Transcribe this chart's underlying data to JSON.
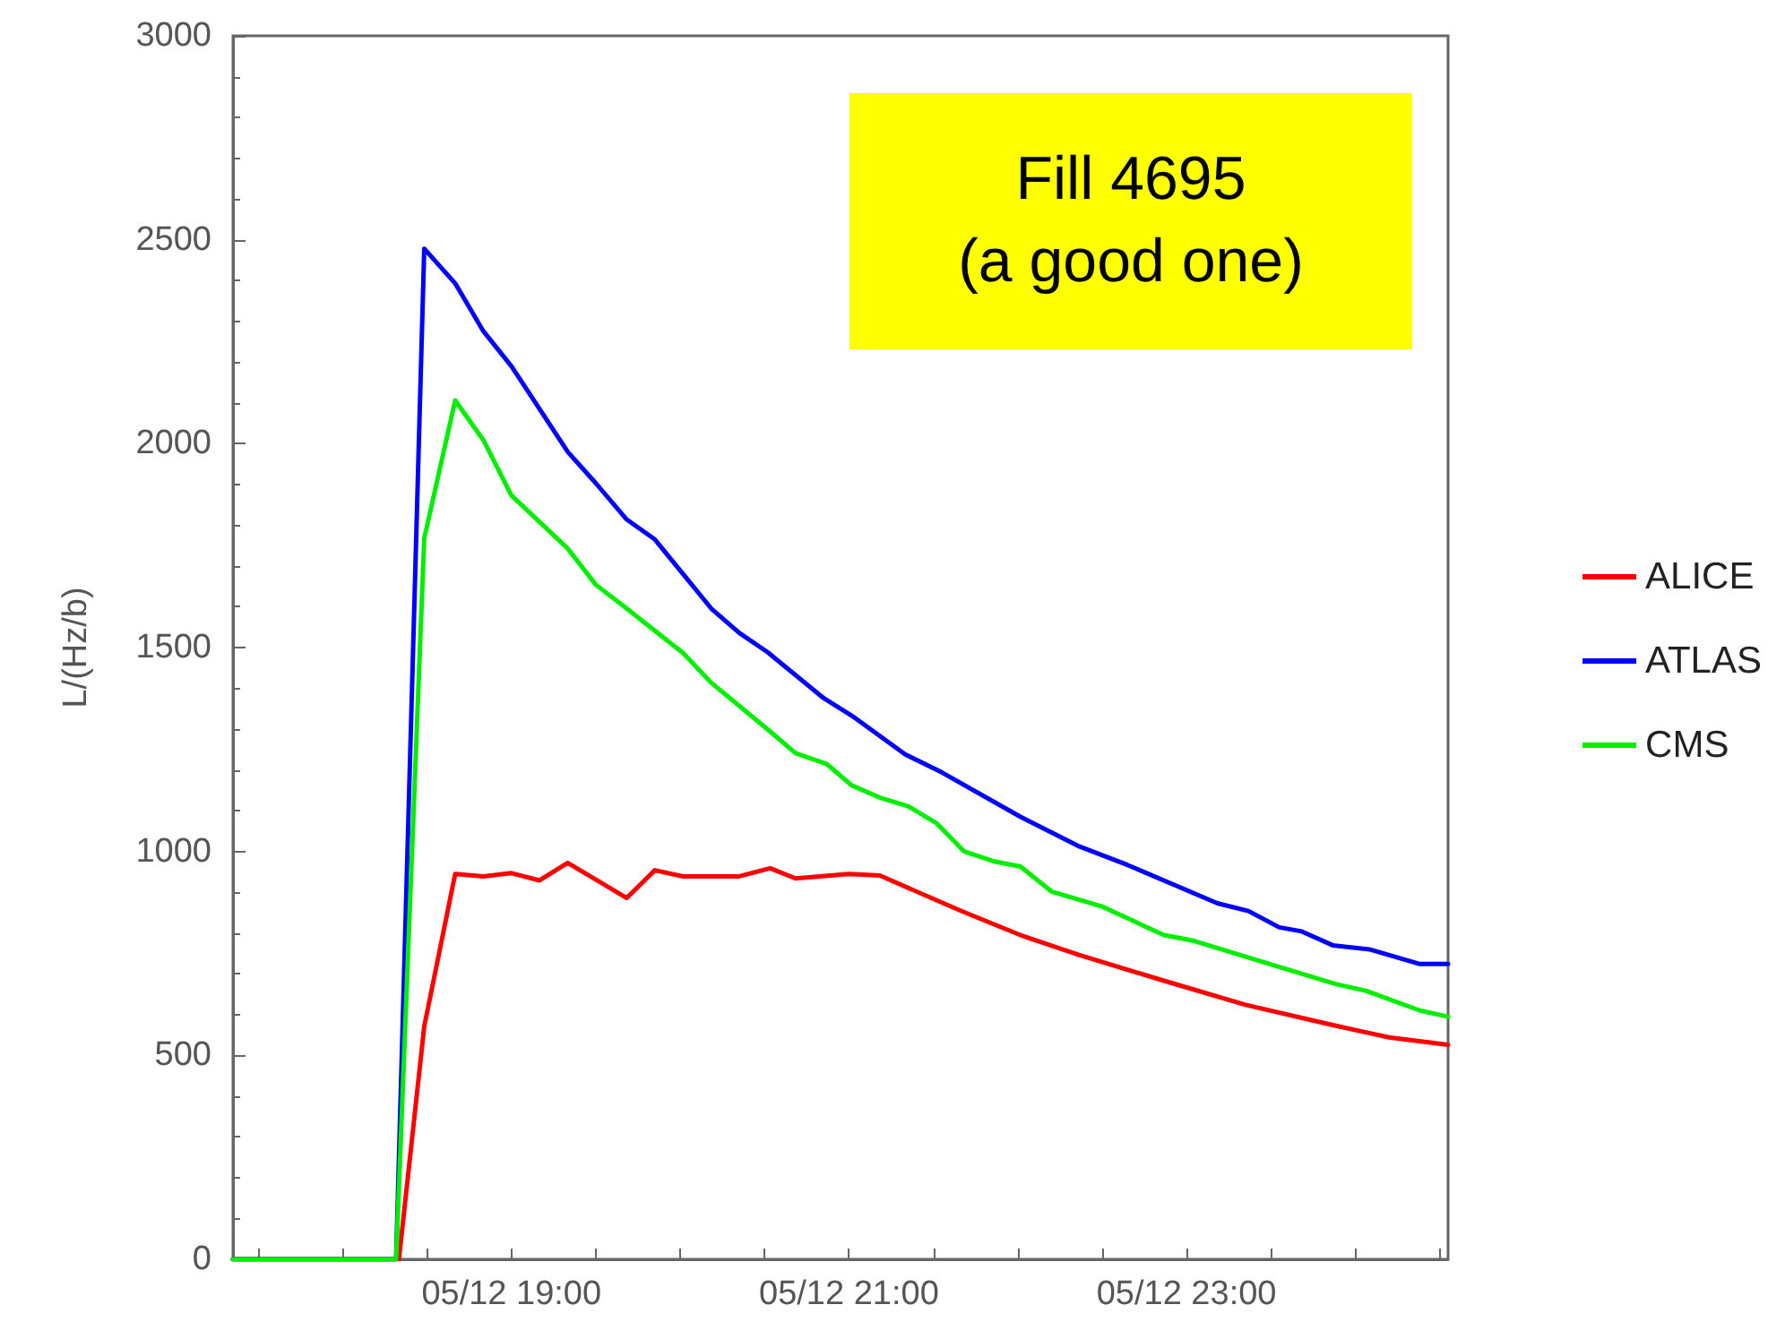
{
  "chart_data": {
    "type": "line",
    "ylabel": "L/(Hz/b)",
    "annotations": [
      "Fill 4695\n(a good one)"
    ],
    "xlim": [
      "--05-12T17:21",
      "--05-13T00:33"
    ],
    "xticks": [
      {
        "value": "--05-12T17:30",
        "label": null
      },
      {
        "value": "--05-12T18:00",
        "label": null
      },
      {
        "value": "--05-12T18:30",
        "label": null
      },
      {
        "value": "--05-12T19:00",
        "label": "05/12 19:00"
      },
      {
        "value": "--05-12T19:30",
        "label": null
      },
      {
        "value": "--05-12T20:00",
        "label": null
      },
      {
        "value": "--05-12T20:30",
        "label": null
      },
      {
        "value": "--05-12T21:00",
        "label": "05/12 21:00"
      },
      {
        "value": "--05-12T21:30",
        "label": null
      },
      {
        "value": "--05-12T22:00",
        "label": null
      },
      {
        "value": "--05-12T22:30",
        "label": null
      },
      {
        "value": "--05-12T23:00",
        "label": "05/12 23:00"
      },
      {
        "value": "--05-12T23:30",
        "label": null
      },
      {
        "value": "--05-13T00:00",
        "label": null
      },
      {
        "value": "--05-13T00:30",
        "label": null
      }
    ],
    "ylim": [
      0,
      3000
    ],
    "yticks": [
      0,
      500,
      1000,
      1500,
      2000,
      2500,
      3000
    ],
    "grid": false,
    "legend": "right",
    "marker": "none",
    "line_style": "solid",
    "series": [
      {
        "name": "ALICE",
        "color": "#ff0000",
        "x": [
          "--05-12T17:21",
          "--05-12T18:20",
          "--05-12T18:29",
          "--05-12T18:40",
          "--05-12T18:50",
          "--05-12T19:00",
          "--05-12T19:10",
          "--05-12T19:20",
          "--05-12T19:41",
          "--05-12T19:51",
          "--05-12T20:01",
          "--05-12T20:21",
          "--05-12T20:32",
          "--05-12T20:41",
          "--05-12T21:00",
          "--05-12T21:11",
          "--05-12T21:41",
          "--05-12T22:01",
          "--05-12T22:22",
          "--05-12T22:52",
          "--05-12T23:21",
          "--05-12T23:51",
          "--05-13T00:12",
          "--05-13T00:33"
        ],
        "values": [
          0,
          0,
          571,
          945,
          939,
          947,
          929,
          972,
          886,
          954,
          939,
          939,
          959,
          934,
          945,
          941,
          851,
          795,
          746,
          683,
          624,
          576,
          544,
          526
        ]
      },
      {
        "name": "ATLAS",
        "color": "#0000ff",
        "x": [
          "--05-12T17:21",
          "--05-12T18:19",
          "--05-12T18:29",
          "--05-12T18:40",
          "--05-12T18:50",
          "--05-12T19:00",
          "--05-12T19:20",
          "--05-12T19:30",
          "--05-12T19:41",
          "--05-12T19:51",
          "--05-12T20:11",
          "--05-12T20:21",
          "--05-12T20:31",
          "--05-12T20:51",
          "--05-12T21:01",
          "--05-12T21:20",
          "--05-12T21:33",
          "--05-12T22:01",
          "--05-12T22:22",
          "--05-12T22:39",
          "--05-12T23:11",
          "--05-12T23:22",
          "--05-12T23:33",
          "--05-12T23:41",
          "--05-12T23:52",
          "--05-13T00:05",
          "--05-13T00:23",
          "--05-13T00:33"
        ],
        "values": [
          0,
          0,
          2478,
          2393,
          2276,
          2190,
          1980,
          1903,
          1814,
          1765,
          1596,
          1536,
          1489,
          1376,
          1333,
          1238,
          1194,
          1085,
          1012,
          967,
          873,
          854,
          814,
          804,
          770,
          760,
          724,
          724
        ]
      },
      {
        "name": "CMS",
        "color": "#00ee00",
        "x": [
          "--05-12T17:21",
          "--05-12T18:19",
          "--05-12T18:29",
          "--05-12T18:40",
          "--05-12T18:50",
          "--05-12T19:00",
          "--05-12T19:20",
          "--05-12T19:30",
          "--05-12T19:40",
          "--05-12T20:01",
          "--05-12T20:11",
          "--05-12T20:32",
          "--05-12T20:41",
          "--05-12T20:52",
          "--05-12T21:01",
          "--05-12T21:11",
          "--05-12T21:21",
          "--05-12T21:31",
          "--05-12T21:41",
          "--05-12T21:52",
          "--05-12T22:01",
          "--05-12T22:12",
          "--05-12T22:30",
          "--05-12T22:52",
          "--05-12T23:02",
          "--05-12T23:32",
          "--05-12T23:53",
          "--05-13T00:04",
          "--05-13T00:23",
          "--05-13T00:33"
        ],
        "values": [
          0,
          0,
          1768,
          2106,
          2009,
          1873,
          1743,
          1654,
          1601,
          1487,
          1414,
          1294,
          1241,
          1215,
          1162,
          1132,
          1111,
          1070,
          1000,
          975,
          963,
          902,
          865,
          795,
          782,
          719,
          675,
          658,
          610,
          595
        ]
      }
    ]
  }
}
